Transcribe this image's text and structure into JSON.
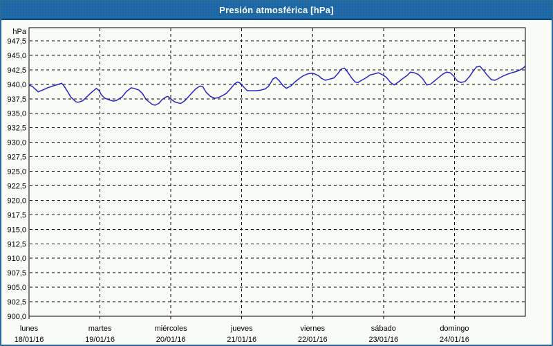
{
  "window": {
    "title": "Presión atmosférica [hPa]"
  },
  "colors": {
    "titlebar_bg": "#1b66a3",
    "titlebar_bottom_edge": "#0d4677",
    "titlebar_text": "#ffffff",
    "frame_border": "#2a6b9d",
    "background": "#fafcf8",
    "plot_line": "#2323c8",
    "grid": "#000000",
    "text": "#000000"
  },
  "chart_data": {
    "type": "line",
    "title": "Presión atmosférica [hPa]",
    "ylabel": "hPa",
    "ylim": [
      900,
      950
    ],
    "ytick_step": 2.5,
    "grid": true,
    "legend_position": "none",
    "yticks": [
      {
        "value": 947.5,
        "label": "947,5"
      },
      {
        "value": 945.0,
        "label": "945,0"
      },
      {
        "value": 942.5,
        "label": "942,5"
      },
      {
        "value": 940.0,
        "label": "940,0"
      },
      {
        "value": 937.5,
        "label": "937,5"
      },
      {
        "value": 935.0,
        "label": "935,0"
      },
      {
        "value": 932.5,
        "label": "932,5"
      },
      {
        "value": 930.0,
        "label": "930,0"
      },
      {
        "value": 927.5,
        "label": "927,5"
      },
      {
        "value": 925.0,
        "label": "925,0"
      },
      {
        "value": 922.5,
        "label": "922,5"
      },
      {
        "value": 920.0,
        "label": "920,0"
      },
      {
        "value": 917.5,
        "label": "917,5"
      },
      {
        "value": 915.0,
        "label": "915,0"
      },
      {
        "value": 912.5,
        "label": "912,5"
      },
      {
        "value": 910.0,
        "label": "910,0"
      },
      {
        "value": 907.5,
        "label": "907,5"
      },
      {
        "value": 905.0,
        "label": "905,0"
      },
      {
        "value": 902.5,
        "label": "902,5"
      },
      {
        "value": 900.0,
        "label": "900,0"
      }
    ],
    "x_days": [
      {
        "name": "lunes",
        "date": "18/01/16"
      },
      {
        "name": "martes",
        "date": "19/01/16"
      },
      {
        "name": "miércoles",
        "date": "20/01/16"
      },
      {
        "name": "jueves",
        "date": "21/01/16"
      },
      {
        "name": "viernes",
        "date": "22/01/16"
      },
      {
        "name": "sábado",
        "date": "23/01/16"
      },
      {
        "name": "domingo",
        "date": "24/01/16"
      }
    ],
    "series": [
      {
        "name": "Presión atmosférica",
        "color": "#2323c8",
        "points_day_hpa": [
          [
            0.0,
            939.9
          ],
          [
            0.05,
            939.6
          ],
          [
            0.13,
            938.7
          ],
          [
            0.19,
            939.0
          ],
          [
            0.26,
            939.4
          ],
          [
            0.36,
            939.8
          ],
          [
            0.44,
            940.1
          ],
          [
            0.46,
            940.2
          ],
          [
            0.5,
            939.6
          ],
          [
            0.54,
            938.8
          ],
          [
            0.59,
            937.8
          ],
          [
            0.66,
            937.0
          ],
          [
            0.69,
            936.9
          ],
          [
            0.72,
            937.0
          ],
          [
            0.76,
            937.2
          ],
          [
            0.81,
            937.8
          ],
          [
            0.88,
            938.6
          ],
          [
            0.95,
            939.3
          ],
          [
            0.99,
            938.9
          ],
          [
            1.02,
            938.2
          ],
          [
            1.07,
            937.6
          ],
          [
            1.14,
            937.3
          ],
          [
            1.19,
            937.1
          ],
          [
            1.23,
            937.2
          ],
          [
            1.31,
            937.8
          ],
          [
            1.37,
            938.7
          ],
          [
            1.44,
            939.4
          ],
          [
            1.48,
            939.3
          ],
          [
            1.55,
            939.0
          ],
          [
            1.6,
            938.4
          ],
          [
            1.65,
            937.4
          ],
          [
            1.7,
            936.9
          ],
          [
            1.74,
            936.5
          ],
          [
            1.78,
            936.4
          ],
          [
            1.83,
            936.7
          ],
          [
            1.88,
            937.4
          ],
          [
            1.93,
            937.8
          ],
          [
            1.96,
            937.9
          ],
          [
            2.0,
            937.5
          ],
          [
            2.05,
            937.0
          ],
          [
            2.1,
            936.8
          ],
          [
            2.14,
            936.7
          ],
          [
            2.2,
            937.2
          ],
          [
            2.28,
            938.3
          ],
          [
            2.35,
            939.2
          ],
          [
            2.41,
            939.7
          ],
          [
            2.45,
            939.6
          ],
          [
            2.5,
            938.6
          ],
          [
            2.56,
            937.9
          ],
          [
            2.62,
            937.6
          ],
          [
            2.67,
            937.7
          ],
          [
            2.72,
            938.0
          ],
          [
            2.78,
            938.4
          ],
          [
            2.84,
            939.2
          ],
          [
            2.9,
            940.1
          ],
          [
            2.94,
            940.4
          ],
          [
            2.98,
            940.2
          ],
          [
            3.03,
            939.5
          ],
          [
            3.08,
            938.9
          ],
          [
            3.14,
            938.9
          ],
          [
            3.2,
            938.9
          ],
          [
            3.27,
            939.0
          ],
          [
            3.33,
            939.2
          ],
          [
            3.38,
            939.7
          ],
          [
            3.44,
            940.9
          ],
          [
            3.48,
            941.2
          ],
          [
            3.53,
            940.6
          ],
          [
            3.58,
            939.8
          ],
          [
            3.63,
            939.3
          ],
          [
            3.69,
            939.7
          ],
          [
            3.75,
            940.4
          ],
          [
            3.81,
            941.0
          ],
          [
            3.87,
            941.5
          ],
          [
            3.93,
            941.8
          ],
          [
            3.98,
            941.9
          ],
          [
            4.03,
            941.8
          ],
          [
            4.08,
            941.5
          ],
          [
            4.13,
            941.0
          ],
          [
            4.18,
            940.7
          ],
          [
            4.24,
            940.9
          ],
          [
            4.3,
            941.1
          ],
          [
            4.36,
            941.9
          ],
          [
            4.4,
            942.6
          ],
          [
            4.45,
            942.8
          ],
          [
            4.5,
            942.0
          ],
          [
            4.55,
            941.1
          ],
          [
            4.6,
            940.4
          ],
          [
            4.64,
            940.3
          ],
          [
            4.69,
            940.7
          ],
          [
            4.75,
            941.1
          ],
          [
            4.81,
            941.6
          ],
          [
            4.87,
            941.8
          ],
          [
            4.93,
            942.0
          ],
          [
            4.99,
            941.6
          ],
          [
            5.04,
            941.2
          ],
          [
            5.1,
            940.3
          ],
          [
            5.15,
            939.9
          ],
          [
            5.21,
            940.4
          ],
          [
            5.27,
            941.0
          ],
          [
            5.33,
            941.5
          ],
          [
            5.38,
            942.1
          ],
          [
            5.43,
            942.0
          ],
          [
            5.49,
            941.7
          ],
          [
            5.55,
            941.0
          ],
          [
            5.61,
            939.9
          ],
          [
            5.66,
            940.0
          ],
          [
            5.71,
            940.5
          ],
          [
            5.77,
            941.1
          ],
          [
            5.84,
            941.8
          ],
          [
            5.89,
            942.1
          ],
          [
            5.94,
            942.0
          ],
          [
            5.99,
            941.4
          ],
          [
            6.04,
            940.6
          ],
          [
            6.09,
            940.3
          ],
          [
            6.15,
            940.5
          ],
          [
            6.21,
            941.3
          ],
          [
            6.26,
            942.2
          ],
          [
            6.31,
            943.0
          ],
          [
            6.36,
            943.1
          ],
          [
            6.41,
            942.4
          ],
          [
            6.46,
            941.6
          ],
          [
            6.52,
            940.8
          ],
          [
            6.57,
            940.7
          ],
          [
            6.62,
            941.0
          ],
          [
            6.68,
            941.4
          ],
          [
            6.74,
            941.7
          ],
          [
            6.81,
            942.0
          ],
          [
            6.87,
            942.2
          ],
          [
            6.93,
            942.5
          ],
          [
            6.98,
            942.9
          ],
          [
            7.0,
            943.2
          ]
        ]
      }
    ]
  }
}
